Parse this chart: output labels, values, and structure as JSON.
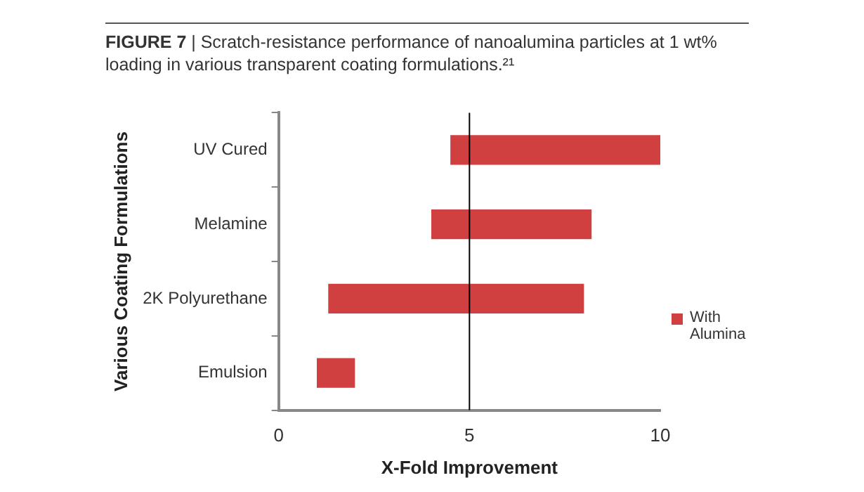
{
  "chart_data": {
    "type": "bar",
    "orientation": "horizontal",
    "title": "FIGURE 7 | Scratch-resistance performance of nanoalumina particles at 1 wt% loading in various transparent coating formulations.²¹",
    "xlabel": "X-Fold Improvement",
    "ylabel": "Various Coating Formulations",
    "categories": [
      "UV Cured",
      "Melamine",
      "2K Polyurethane",
      "Emulsion"
    ],
    "series": [
      {
        "name": "With Alumina",
        "color": "#d04040",
        "values": [
          5.5,
          4.2,
          6.7,
          1.0
        ],
        "base": [
          4.5,
          4.0,
          1.3,
          1.0
        ]
      }
    ],
    "xlim": [
      0,
      10
    ],
    "xticks": [
      0,
      5,
      10
    ],
    "ref_lines": [
      {
        "axis": "x",
        "value": 5,
        "color": "#000000"
      }
    ],
    "grid": false,
    "legend": "right"
  }
}
